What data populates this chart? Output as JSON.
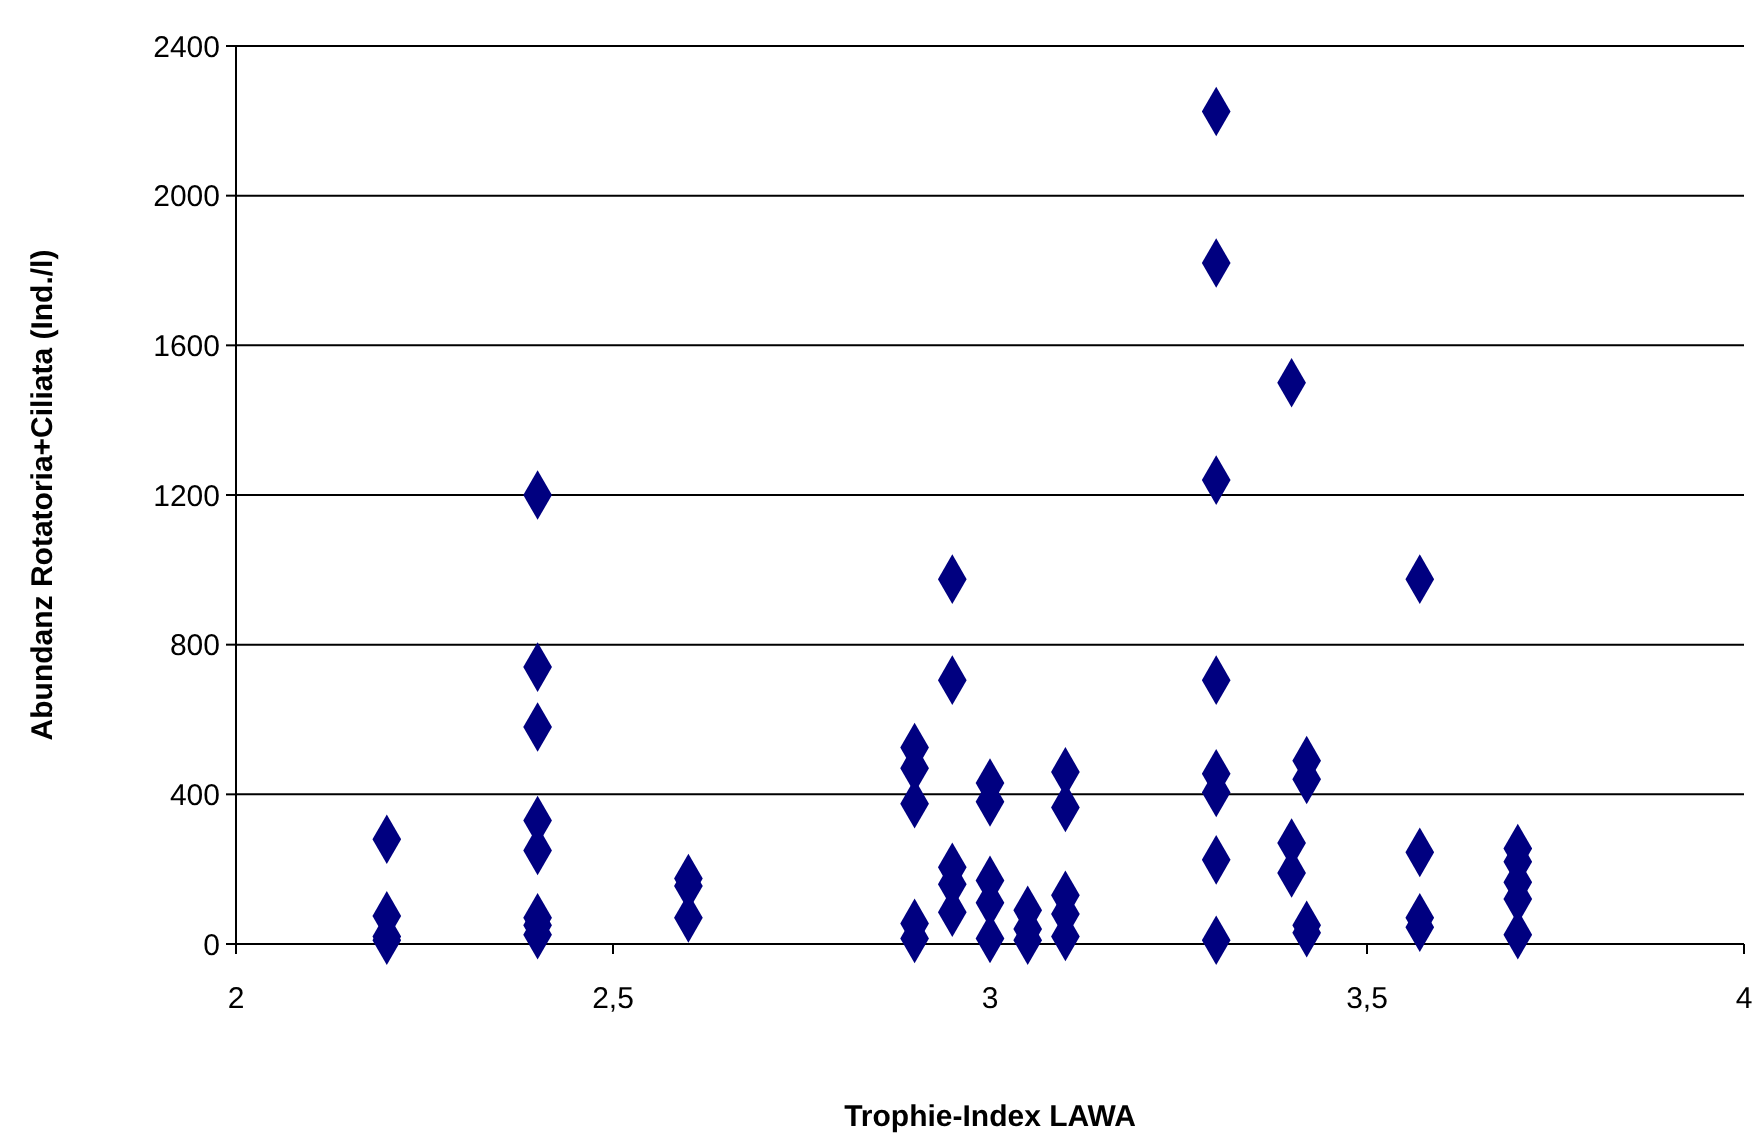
{
  "chart_data": {
    "type": "scatter",
    "xlabel": "Trophie-Index LAWA",
    "ylabel": "Abundanz Rotatoria+Ciliata (Ind./l)",
    "xlim": [
      2,
      4
    ],
    "xticks": [
      2,
      {
        "value": 2.5,
        "label": "2,5"
      },
      3,
      {
        "value": 3.5,
        "label": "3,5"
      },
      4
    ],
    "ylim": [
      0,
      2400
    ],
    "yticks": [
      0,
      400,
      800,
      1200,
      1600,
      2000,
      2400
    ],
    "grid": "y",
    "marker": "diamond",
    "series": [
      {
        "color": "#000080",
        "x": [
          2.2,
          2.2,
          2.2,
          2.2,
          2.4,
          2.4,
          2.4,
          2.4,
          2.4,
          2.4,
          2.4,
          2.4,
          2.6,
          2.6,
          2.6,
          2.9,
          2.9,
          2.9,
          2.9,
          2.9,
          2.95,
          2.95,
          2.95,
          2.95,
          2.95,
          3,
          3,
          3,
          3,
          3,
          3.05,
          3.05,
          3.05,
          3.1,
          3.1,
          3.1,
          3.1,
          3.1,
          3.3,
          3.3,
          3.3,
          3.3,
          3.3,
          3.3,
          3.3,
          3.3,
          3.4,
          3.4,
          3.4,
          3.42,
          3.42,
          3.42,
          3.42,
          3.57,
          3.57,
          3.57,
          3.57,
          3.7,
          3.7,
          3.7,
          3.7,
          3.7
        ],
        "values": [
          280,
          75,
          20,
          10,
          1200,
          740,
          580,
          330,
          250,
          70,
          50,
          25,
          175,
          155,
          70,
          525,
          470,
          375,
          55,
          15,
          975,
          705,
          205,
          160,
          85,
          430,
          380,
          170,
          110,
          15,
          90,
          40,
          10,
          460,
          365,
          130,
          80,
          20,
          2225,
          1820,
          1240,
          705,
          455,
          405,
          225,
          10,
          1500,
          270,
          190,
          490,
          440,
          50,
          30,
          975,
          245,
          70,
          45,
          255,
          220,
          165,
          120,
          25
        ]
      }
    ]
  }
}
